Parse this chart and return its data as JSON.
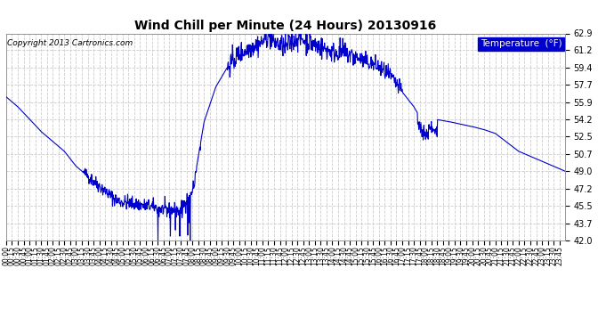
{
  "title": "Wind Chill per Minute (24 Hours) 20130916",
  "copyright": "Copyright 2013 Cartronics.com",
  "legend_label": "Temperature  (°F)",
  "ymin": 42.0,
  "ymax": 62.9,
  "yticks": [
    42.0,
    43.7,
    45.5,
    47.2,
    49.0,
    50.7,
    52.5,
    54.2,
    55.9,
    57.7,
    59.4,
    61.2,
    62.9
  ],
  "line_color": "#0000cc",
  "background_color": "#ffffff",
  "plot_bg_color": "#ffffff",
  "grid_color": "#cccccc",
  "title_color": "#000000",
  "legend_bg": "#0000cc",
  "legend_text_color": "#ffffff",
  "figsize": [
    6.9,
    3.75
  ],
  "dpi": 100,
  "keypoints_t": [
    0,
    30,
    90,
    150,
    180,
    210,
    255,
    285,
    315,
    360,
    390,
    420,
    450,
    480,
    510,
    540,
    570,
    600,
    630,
    660,
    675,
    690,
    720,
    750,
    780,
    840,
    870,
    900,
    930,
    960,
    975,
    990,
    1020,
    1050,
    1080,
    1095,
    1110,
    1140,
    1200,
    1230,
    1260,
    1320,
    1380,
    1410,
    1439
  ],
  "keypoints_v": [
    56.5,
    55.5,
    53.0,
    51.0,
    49.5,
    48.5,
    47.0,
    46.0,
    45.8,
    45.5,
    45.3,
    45.0,
    45.2,
    47.0,
    54.0,
    57.5,
    59.5,
    60.8,
    61.5,
    62.0,
    62.8,
    62.0,
    61.5,
    62.5,
    62.0,
    61.0,
    61.0,
    60.5,
    60.0,
    59.5,
    59.0,
    58.5,
    57.0,
    55.5,
    53.5,
    54.5,
    54.2,
    54.0,
    53.5,
    53.2,
    52.8,
    51.0,
    50.0,
    49.5,
    49.0
  ]
}
